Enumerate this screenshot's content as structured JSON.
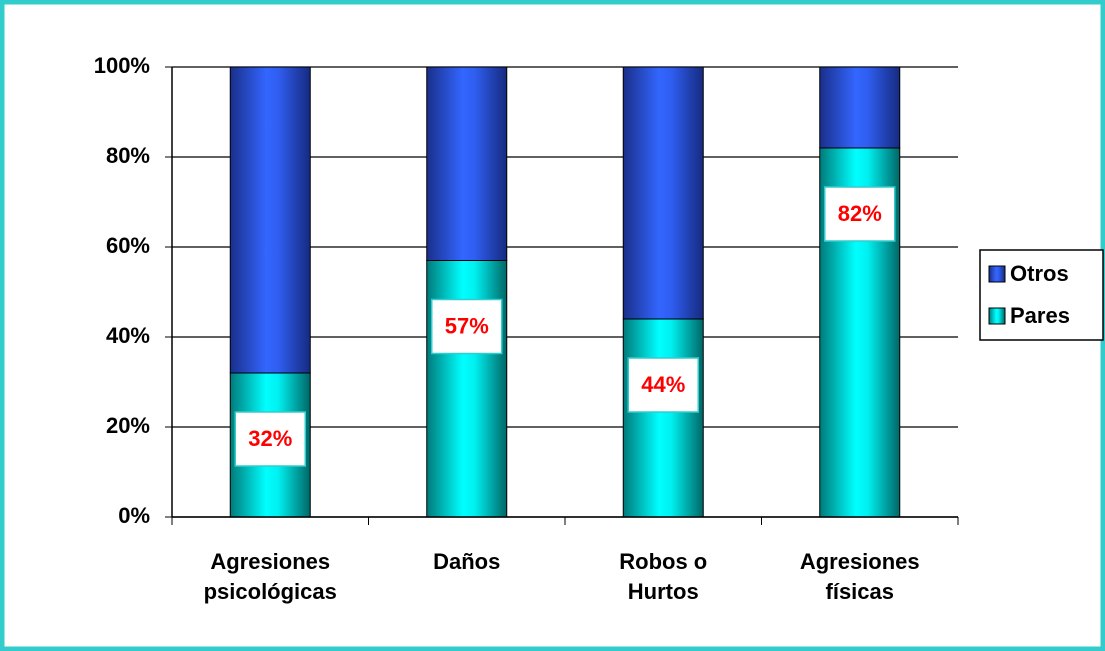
{
  "chart_data": {
    "type": "stacked_bar",
    "categories": [
      "Agresiones psicológicas",
      "Daños",
      "Robos o Hurtos",
      "Agresiones físicas"
    ],
    "series": [
      {
        "name": "Pares",
        "color": "#00ffff",
        "values": [
          32,
          57,
          44,
          82
        ],
        "value_labels": [
          "32%",
          "57%",
          "44%",
          "82%"
        ]
      },
      {
        "name": "Otros",
        "color": "#3366ff",
        "values": [
          68,
          43,
          56,
          18
        ]
      }
    ],
    "ylim": [
      0,
      100
    ],
    "yticks": [
      {
        "value": 0,
        "label": "0%"
      },
      {
        "value": 20,
        "label": "20%"
      },
      {
        "value": 40,
        "label": "40%"
      },
      {
        "value": 60,
        "label": "60%"
      },
      {
        "value": 80,
        "label": "80%"
      },
      {
        "value": 100,
        "label": "100%"
      }
    ],
    "grid": true,
    "legend": "right"
  }
}
